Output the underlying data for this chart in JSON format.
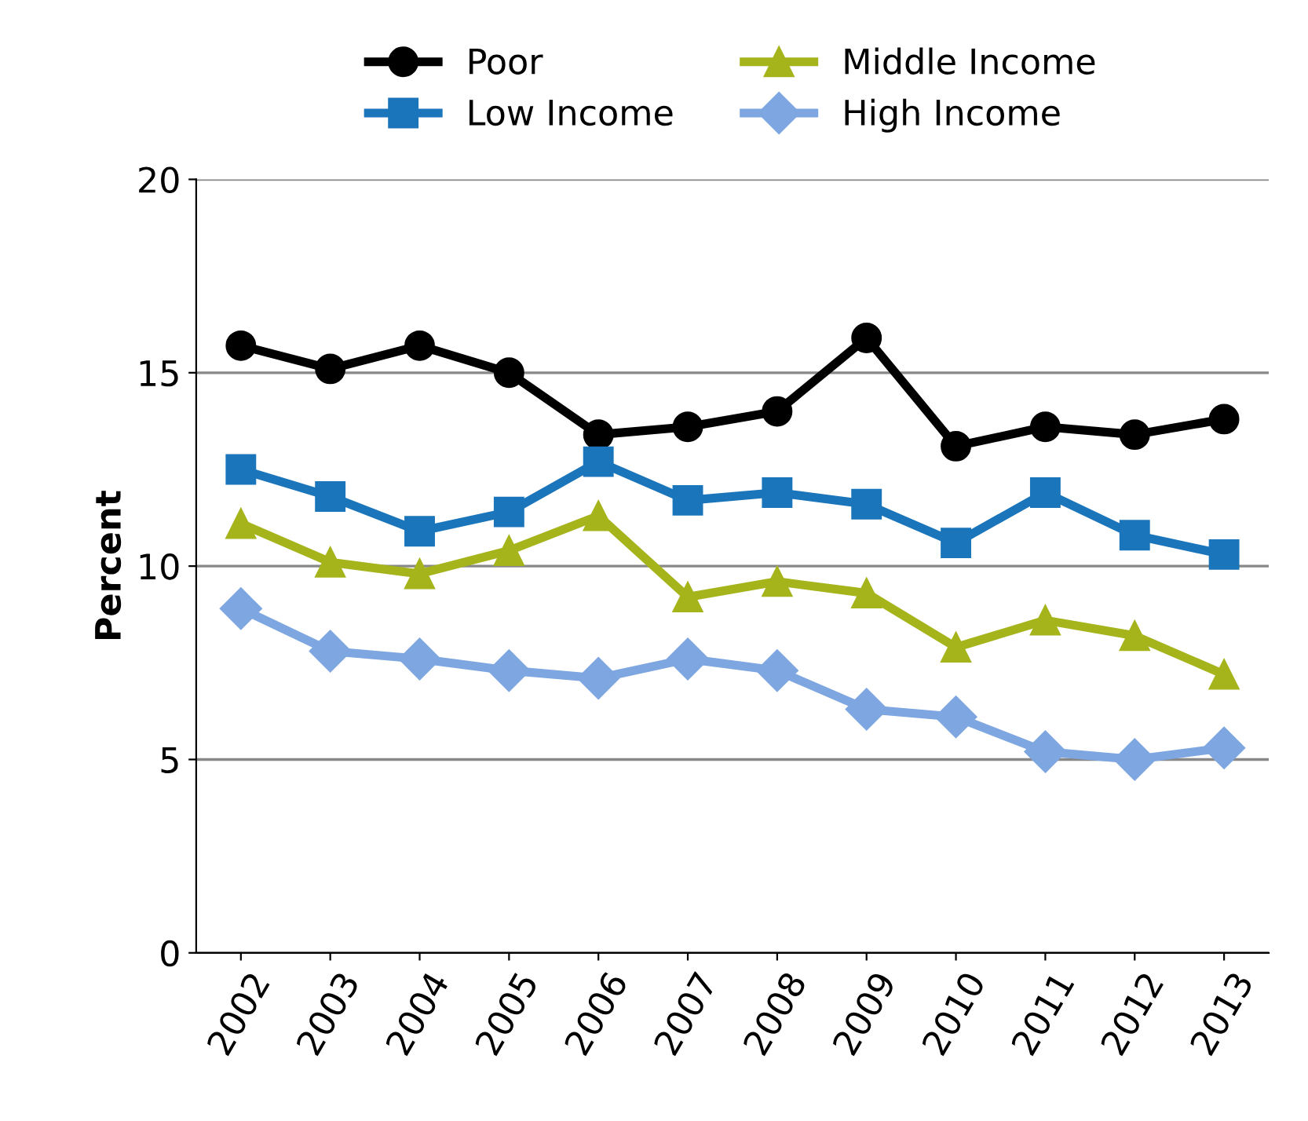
{
  "chart_data": {
    "type": "line",
    "ylabel": "Percent",
    "categories": [
      "2002",
      "2003",
      "2004",
      "2005",
      "2006",
      "2007",
      "2008",
      "2009",
      "2010",
      "2011",
      "2012",
      "2013"
    ],
    "series": [
      {
        "name": "Poor",
        "color": "#000000",
        "marker": "circle",
        "values": [
          15.7,
          15.1,
          15.7,
          15.0,
          13.4,
          13.6,
          14.0,
          15.9,
          13.1,
          13.6,
          13.4,
          13.8
        ]
      },
      {
        "name": "Low Income",
        "color": "#1b75bb",
        "marker": "square",
        "values": [
          12.5,
          11.8,
          10.9,
          11.4,
          12.7,
          11.7,
          11.9,
          11.6,
          10.6,
          11.9,
          10.8,
          10.3
        ]
      },
      {
        "name": "Middle Income",
        "color": "#a5b41b",
        "marker": "triangle",
        "values": [
          11.1,
          10.1,
          9.8,
          10.4,
          11.3,
          9.2,
          9.6,
          9.3,
          7.9,
          8.6,
          8.2,
          7.2
        ]
      },
      {
        "name": "High Income",
        "color": "#7ea6e0",
        "marker": "diamond",
        "values": [
          8.9,
          7.8,
          7.6,
          7.3,
          7.1,
          7.6,
          7.3,
          6.3,
          6.1,
          5.2,
          5.0,
          5.3
        ]
      }
    ],
    "ylim": [
      0,
      20
    ],
    "yticks": [
      0,
      5,
      10,
      15,
      20
    ],
    "grid": "y",
    "legend": "top",
    "line_style": "solid"
  }
}
